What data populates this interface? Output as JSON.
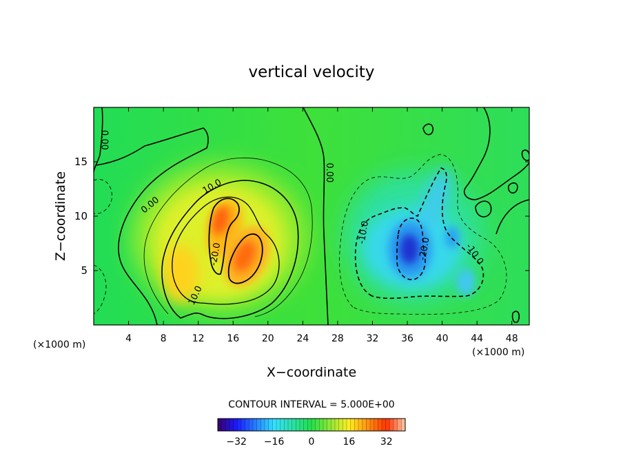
{
  "chart_data": {
    "type": "heatmap",
    "subtype": "filled-contour",
    "title": "vertical velocity",
    "xlabel": "X−coordinate",
    "ylabel": "Z−coordinate",
    "x_unit_left": "(×1000 m)",
    "x_unit_right": "(×1000 m)",
    "xlim": [
      0,
      50
    ],
    "ylim": [
      0,
      20
    ],
    "x_ticks": [
      4,
      8,
      12,
      16,
      20,
      24,
      28,
      32,
      36,
      40,
      44,
      48
    ],
    "y_ticks": [
      5,
      10,
      15
    ],
    "contour_interval_text": "CONTOUR INTERVAL = 5.000E+00",
    "contour_interval": 5,
    "contour_labels": [
      {
        "text": "0.00",
        "x": 1.2,
        "y": 17.0,
        "rot": 90
      },
      {
        "text": "0.00",
        "x": 27.0,
        "y": 14.0,
        "rot": 90
      },
      {
        "text": "0.00",
        "x": 6.5,
        "y": 11.0,
        "rot": -40
      },
      {
        "text": "10.0",
        "x": 13.6,
        "y": 12.7,
        "rot": -30
      },
      {
        "text": "-20.0",
        "x": 14.0,
        "y": 6.5,
        "rot": -80
      },
      {
        "text": "10.0",
        "x": 11.7,
        "y": 2.7,
        "rot": -65
      },
      {
        "text": "-10.0",
        "x": 31.0,
        "y": 8.5,
        "rot": -80
      },
      {
        "text": "-20.0",
        "x": 38.0,
        "y": 7.0,
        "rot": -80
      },
      {
        "text": "-10.0",
        "x": 43.7,
        "y": 6.5,
        "rot": 55
      }
    ],
    "field_features": [
      {
        "kind": "updraft",
        "x": 14.8,
        "y": 9.8,
        "peak": 30
      },
      {
        "kind": "updraft",
        "x": 18.2,
        "y": 6.3,
        "peak": 30
      },
      {
        "kind": "updraft",
        "x": 10.2,
        "y": 3.6,
        "peak": 20
      },
      {
        "kind": "downdraft",
        "x": 36.2,
        "y": 7.2,
        "peak": -32
      },
      {
        "kind": "downdraft",
        "x": 39.5,
        "y": 11.0,
        "peak": -18
      },
      {
        "kind": "downdraft",
        "x": 41.3,
        "y": 8.5,
        "peak": -16
      },
      {
        "kind": "downdraft",
        "x": 42.7,
        "y": 4.0,
        "peak": -14
      }
    ],
    "colorbar": {
      "min": -40,
      "max": 40,
      "tick_values": [
        -32,
        -16,
        0,
        16,
        32
      ],
      "tick_labels": [
        "−32",
        "−16",
        "0",
        "16",
        "32"
      ]
    },
    "colors": {
      "min": "#3a006a",
      "neg_strong": "#1a1aff",
      "neg": "#33e0ff",
      "zero": "#22e04a",
      "pos": "#ffee22",
      "pos_strong": "#ff3300",
      "max": "#ffccaa"
    }
  }
}
